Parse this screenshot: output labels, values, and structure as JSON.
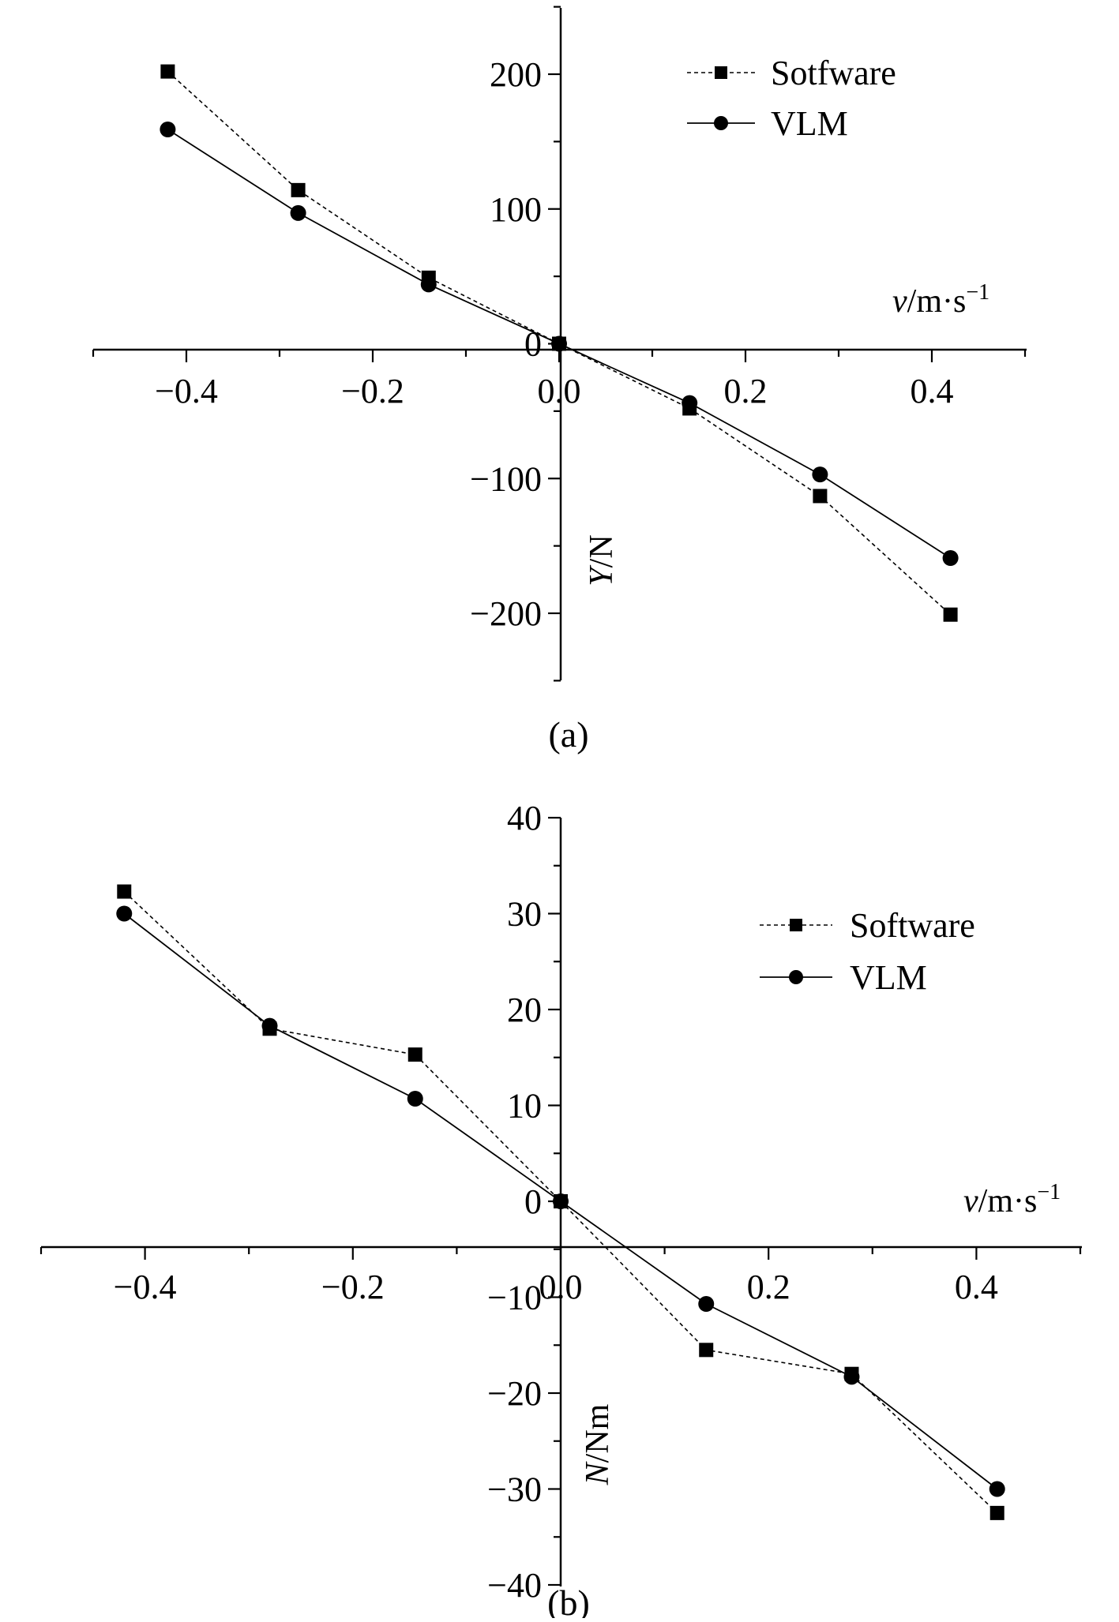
{
  "chart_data": [
    {
      "type": "line",
      "panel_label": "(a)",
      "xlabel": {
        "italic": "v",
        "rest": "/m·s",
        "sup": "−1"
      },
      "ylabel": {
        "italic": "Y",
        "rest": "/N"
      },
      "xlim": [
        -0.5,
        0.5
      ],
      "ylim": [
        -250,
        250
      ],
      "x_ticks": [
        -0.4,
        -0.2,
        0.0,
        0.2,
        0.4
      ],
      "x_tick_labels": [
        "-0.4",
        "-0.2",
        "0.0",
        "0.2",
        "0.4"
      ],
      "y_ticks": [
        -200,
        -100,
        0,
        100,
        200
      ],
      "y_tick_labels": [
        "-200",
        "-100",
        "0",
        "100",
        "200"
      ],
      "grid": false,
      "legend_position": "top-right",
      "series": [
        {
          "name": "Sotfware",
          "marker": "square",
          "line": "dashed",
          "x": [
            -0.42,
            -0.28,
            -0.14,
            0.0,
            0.14,
            0.28,
            0.42
          ],
          "y": [
            202,
            114,
            49,
            0,
            -48,
            -113,
            -201
          ]
        },
        {
          "name": "VLM",
          "marker": "circle",
          "line": "solid",
          "x": [
            -0.42,
            -0.28,
            -0.14,
            0.0,
            0.14,
            0.28,
            0.42
          ],
          "y": [
            159,
            97,
            44,
            0,
            -44,
            -97,
            -159
          ]
        }
      ]
    },
    {
      "type": "line",
      "panel_label": "(b)",
      "xlabel": {
        "italic": "v",
        "rest": "/m·s",
        "sup": "−1"
      },
      "ylabel": {
        "italic": "N",
        "rest": "/Nm"
      },
      "xlim": [
        -0.5,
        0.5
      ],
      "ylim": [
        -40,
        40
      ],
      "x_ticks": [
        -0.4,
        -0.2,
        0.0,
        0.2,
        0.4
      ],
      "x_tick_labels": [
        "-0.4",
        "-0.2",
        "0.0",
        "0.2",
        "0.4"
      ],
      "y_ticks": [
        -40,
        -30,
        -20,
        -10,
        0,
        10,
        20,
        30,
        40
      ],
      "y_tick_labels": [
        "-40",
        "-30",
        "-20",
        "-10",
        "0",
        "10",
        "20",
        "30",
        "40"
      ],
      "grid": false,
      "legend_position": "top-right",
      "series": [
        {
          "name": "Software",
          "marker": "square",
          "line": "dashed",
          "x": [
            -0.42,
            -0.28,
            -0.14,
            0.0,
            0.14,
            0.28,
            0.42
          ],
          "y": [
            32.3,
            18.0,
            15.3,
            0,
            -15.5,
            -18.0,
            -32.5
          ]
        },
        {
          "name": "VLM",
          "marker": "circle",
          "line": "solid",
          "x": [
            -0.42,
            -0.28,
            -0.14,
            0.0,
            0.14,
            0.28,
            0.42
          ],
          "y": [
            30.0,
            18.3,
            10.7,
            0,
            -10.7,
            -18.3,
            -30.0
          ]
        }
      ]
    }
  ],
  "colors": {
    "ink": "#000000",
    "background": "#ffffff"
  }
}
